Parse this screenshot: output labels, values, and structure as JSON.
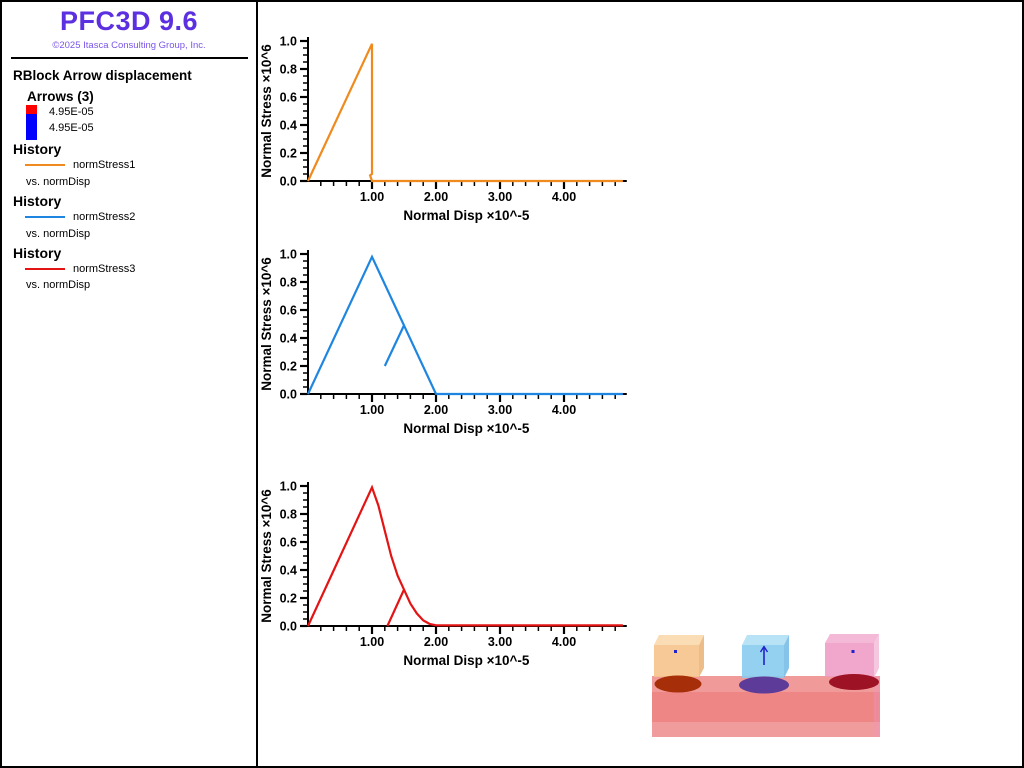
{
  "app": {
    "title": "PFC3D 9.6",
    "copyright": "©2025 Itasca Consulting Group, Inc.",
    "title_color": "#5c2fe0",
    "copyright_color": "#7a55e8"
  },
  "sidebar": {
    "plot_item": {
      "title": "RBlock Arrow displacement",
      "group_label": "Arrows (3)",
      "swatch": {
        "top_color": "#ff0000",
        "bottom_color": "#0000ff",
        "max_value": "4.95E-05",
        "min_value": "4.95E-05"
      }
    },
    "histories": [
      {
        "heading": "History",
        "series": "normStress1",
        "vs": "vs. normDisp",
        "color": "#f08a1e"
      },
      {
        "heading": "History",
        "series": "normStress2",
        "vs": "vs. normDisp",
        "color": "#1e86e0"
      },
      {
        "heading": "History",
        "series": "normStress3",
        "vs": "vs. normDisp",
        "color": "#e41414"
      }
    ]
  },
  "chart_data": [
    {
      "type": "line",
      "title": "",
      "xlabel": "Normal Disp ×10^-5",
      "ylabel": "Normal Stress ×10^6",
      "xlim": [
        0,
        4.95
      ],
      "ylim": [
        0,
        1.0
      ],
      "grid": false,
      "x_major_ticks": [
        1,
        2,
        3,
        4
      ],
      "x_tick_labels": [
        "1.00",
        "2.00",
        "3.00",
        "4.00"
      ],
      "x_minor_step": 0.2,
      "y_major_ticks": [
        0,
        0.2,
        0.4,
        0.6,
        0.8,
        1.0
      ],
      "y_tick_labels": [
        "0.0",
        "0.2",
        "0.4",
        "0.6",
        "0.8",
        "1.0"
      ],
      "y_minor_step": 0.05,
      "series": [
        {
          "name": "normStress1 vs. normDisp",
          "color": "#f08a1e",
          "points": [
            [
              0,
              0
            ],
            [
              1.0,
              0.98
            ],
            [
              1.0,
              0.05
            ],
            [
              0.97,
              0.04
            ],
            [
              1.0,
              0
            ],
            [
              4.92,
              0
            ]
          ]
        }
      ]
    },
    {
      "type": "line",
      "title": "",
      "xlabel": "Normal Disp ×10^-5",
      "ylabel": "Normal Stress ×10^6",
      "xlim": [
        0,
        4.95
      ],
      "ylim": [
        0,
        1.0
      ],
      "grid": false,
      "x_major_ticks": [
        1,
        2,
        3,
        4
      ],
      "x_tick_labels": [
        "1.00",
        "2.00",
        "3.00",
        "4.00"
      ],
      "x_minor_step": 0.2,
      "y_major_ticks": [
        0,
        0.2,
        0.4,
        0.6,
        0.8,
        1.0
      ],
      "y_tick_labels": [
        "0.0",
        "0.2",
        "0.4",
        "0.6",
        "0.8",
        "1.0"
      ],
      "y_minor_step": 0.05,
      "series": [
        {
          "name": "normStress2 vs. normDisp",
          "color": "#1e86e0",
          "points": [
            [
              0,
              0
            ],
            [
              1.0,
              0.98
            ],
            [
              1.5,
              0.49
            ],
            [
              1.2,
              0.2
            ],
            [
              1.5,
              0.49
            ],
            [
              2.0,
              0
            ],
            [
              4.92,
              0
            ]
          ]
        }
      ]
    },
    {
      "type": "line",
      "title": "",
      "xlabel": "Normal Disp ×10^-5",
      "ylabel": "Normal Stress ×10^6",
      "xlim": [
        0,
        4.95
      ],
      "ylim": [
        0,
        1.0
      ],
      "grid": false,
      "x_major_ticks": [
        1,
        2,
        3,
        4
      ],
      "x_tick_labels": [
        "1.00",
        "2.00",
        "3.00",
        "4.00"
      ],
      "x_minor_step": 0.2,
      "y_major_ticks": [
        0,
        0.2,
        0.4,
        0.6,
        0.8,
        1.0
      ],
      "y_tick_labels": [
        "0.0",
        "0.2",
        "0.4",
        "0.6",
        "0.8",
        "1.0"
      ],
      "y_minor_step": 0.05,
      "series": [
        {
          "name": "normStress3 vs. normDisp",
          "color": "#e41414",
          "points": [
            [
              0,
              0
            ],
            [
              1.0,
              0.99
            ],
            [
              1.1,
              0.86
            ],
            [
              1.2,
              0.68
            ],
            [
              1.3,
              0.5
            ],
            [
              1.4,
              0.36
            ],
            [
              1.5,
              0.26
            ],
            [
              1.24,
              0
            ],
            [
              1.5,
              0.26
            ],
            [
              1.6,
              0.16
            ],
            [
              1.7,
              0.09
            ],
            [
              1.8,
              0.04
            ],
            [
              1.9,
              0.015
            ],
            [
              2.0,
              0.005
            ],
            [
              4.92,
              0.004
            ]
          ]
        }
      ]
    }
  ],
  "scene": {
    "slab": {
      "top_color": "#f09a9a",
      "front_color": "#ee8686",
      "bottom_color": "#f09c9c"
    },
    "cubes": [
      {
        "name": "block-left",
        "face": "#f5c189",
        "top": "#fbd9ad",
        "side": "#e9ad6b",
        "contact": "#a62e08"
      },
      {
        "name": "block-middle",
        "face": "#85cbee",
        "top": "#b0e0f5",
        "side": "#66b4e4",
        "contact": "#5c3c98"
      },
      {
        "name": "block-right",
        "face": "#ee96c2",
        "top": "#f3b1d1",
        "side": "#f3bad8",
        "contact": "#9e1226"
      }
    ],
    "arrow_color": "#2222cc"
  }
}
